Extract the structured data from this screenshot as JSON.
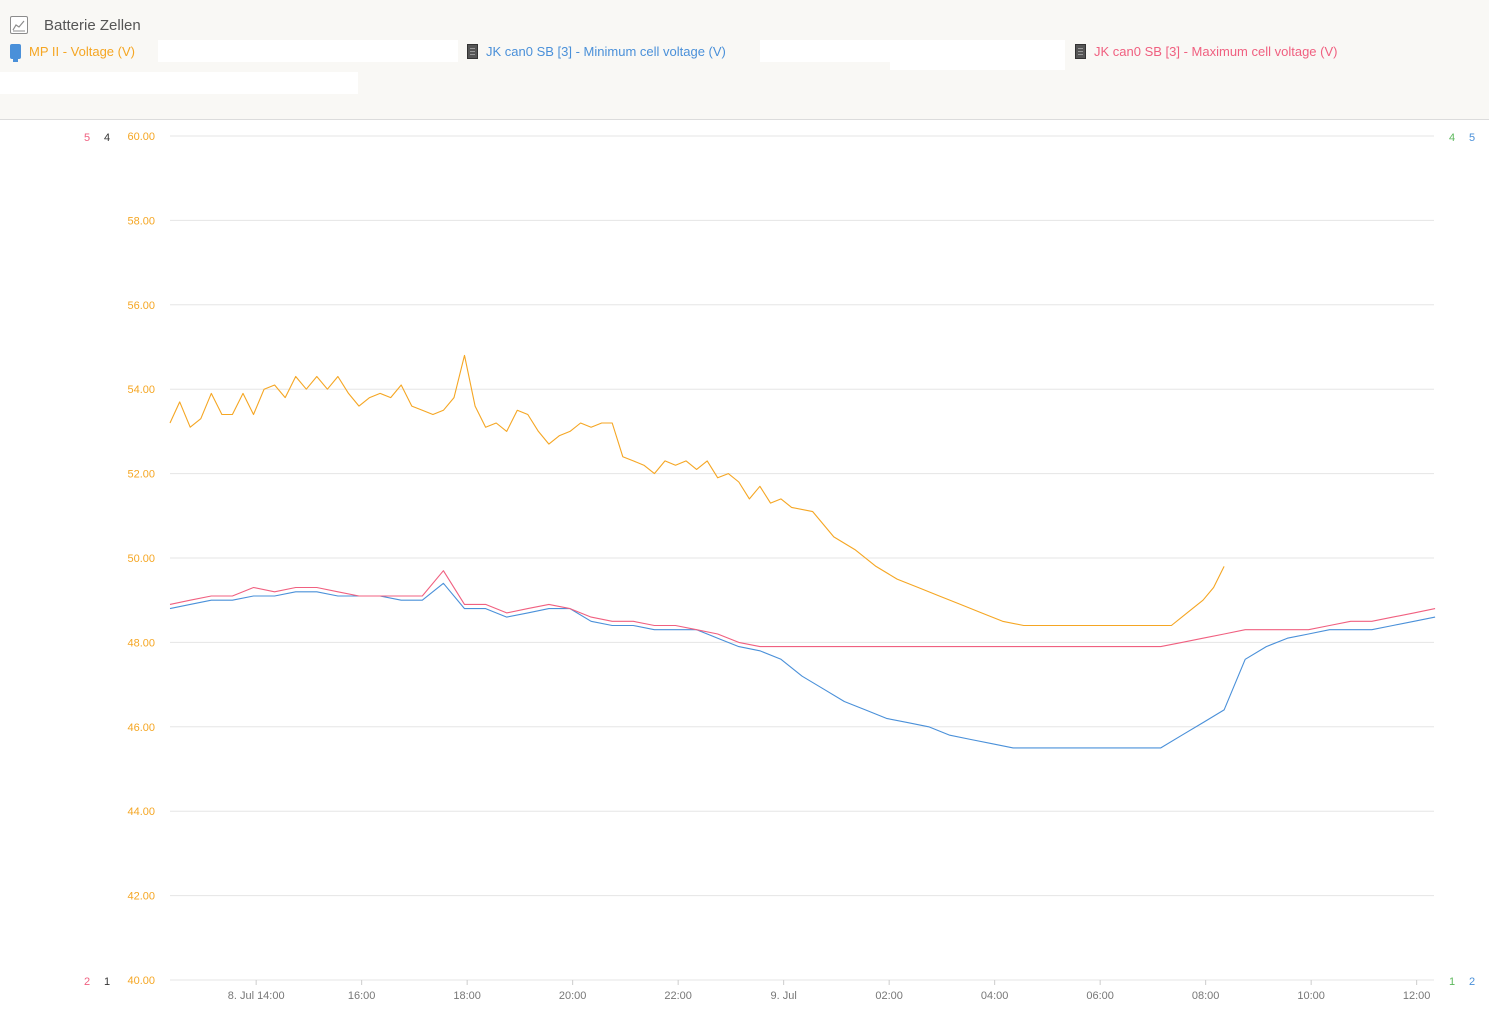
{
  "header": {
    "title": "Batterie Zellen",
    "icon": "line-chart-icon"
  },
  "legend": [
    {
      "label": "MP II  - Voltage (V)",
      "color": "#f5a623",
      "icon": "multiplus-icon"
    },
    {
      "label": "JK can0 SB [3]  - Minimum cell voltage (V)",
      "color": "#4a90d9",
      "icon": "battery-icon"
    },
    {
      "label": "JK can0 SB [3]  - Maximum cell voltage (V)",
      "color": "#f06080",
      "icon": "battery-icon"
    }
  ],
  "colors": {
    "voltage": "#f5a623",
    "min_cell": "#4a90d9",
    "max_cell": "#f06080",
    "axis_green": "#5cb85c",
    "axis_dark": "#333333",
    "grid": "#e5e5e5",
    "tick_text": "#777777"
  },
  "chart_data": {
    "type": "line",
    "title": "Batterie Zellen",
    "xlabel": "",
    "ylabel": "",
    "grid": true,
    "legend_position": "top",
    "x_range": [
      "2025-07-08 12:22",
      "2025-07-09 12:25"
    ],
    "ylim": [
      40,
      60
    ],
    "y_ticks": [
      "60.00",
      "58.00",
      "56.00",
      "54.00",
      "52.00",
      "50.00",
      "48.00",
      "46.00",
      "44.00",
      "42.00",
      "40.00"
    ],
    "x_ticks": [
      "8. Jul 14:00",
      "16:00",
      "18:00",
      "20:00",
      "22:00",
      "9. Jul",
      "02:00",
      "04:00",
      "06:00",
      "08:00",
      "10:00",
      "12:00"
    ],
    "extra_axes": {
      "left_outer": {
        "top": "5",
        "bottom": "2",
        "color": "#f06080"
      },
      "left_inner": {
        "top": "4",
        "bottom": "1",
        "color": "#333333"
      },
      "right_inner": {
        "top": "4",
        "bottom": "1",
        "color": "#5cb85c"
      },
      "right_outer": {
        "top": "5",
        "bottom": "2",
        "color": "#4a90d9"
      }
    },
    "series": [
      {
        "name": "MP II  - Voltage (V)",
        "color": "#f5a623",
        "x": [
          "07-08 12:22",
          "07-08 12:33",
          "07-08 12:45",
          "07-08 12:57",
          "07-08 13:09",
          "07-08 13:21",
          "07-08 13:33",
          "07-08 13:45",
          "07-08 13:57",
          "07-08 14:09",
          "07-08 14:21",
          "07-08 14:33",
          "07-08 14:45",
          "07-08 14:57",
          "07-08 15:09",
          "07-08 15:21",
          "07-08 15:33",
          "07-08 15:45",
          "07-08 15:57",
          "07-08 16:09",
          "07-08 16:21",
          "07-08 16:33",
          "07-08 16:45",
          "07-08 16:57",
          "07-08 17:09",
          "07-08 17:21",
          "07-08 17:33",
          "07-08 17:45",
          "07-08 17:57",
          "07-08 18:09",
          "07-08 18:21",
          "07-08 18:33",
          "07-08 18:45",
          "07-08 18:57",
          "07-08 19:09",
          "07-08 19:21",
          "07-08 19:33",
          "07-08 19:45",
          "07-08 19:57",
          "07-08 20:09",
          "07-08 20:21",
          "07-08 20:33",
          "07-08 20:45",
          "07-08 20:57",
          "07-08 21:09",
          "07-08 21:21",
          "07-08 21:33",
          "07-08 21:45",
          "07-08 21:57",
          "07-08 22:09",
          "07-08 22:21",
          "07-08 22:33",
          "07-08 22:45",
          "07-08 22:57",
          "07-08 23:09",
          "07-08 23:21",
          "07-08 23:33",
          "07-08 23:45",
          "07-08 23:57",
          "07-09 00:09",
          "07-09 00:33",
          "07-09 00:57",
          "07-09 01:21",
          "07-09 01:45",
          "07-09 02:09",
          "07-09 02:33",
          "07-09 02:57",
          "07-09 03:21",
          "07-09 03:45",
          "07-09 04:09",
          "07-09 04:33",
          "07-09 04:57",
          "07-09 05:21",
          "07-09 05:45",
          "07-09 06:09",
          "07-09 06:33",
          "07-09 06:57",
          "07-09 07:09",
          "07-09 07:21",
          "07-09 07:33",
          "07-09 07:45",
          "07-09 07:57",
          "07-09 08:09",
          "07-09 08:21"
        ],
        "values": [
          53.2,
          53.7,
          53.1,
          53.3,
          53.9,
          53.4,
          53.4,
          53.9,
          53.4,
          54.0,
          54.1,
          53.8,
          54.3,
          54.0,
          54.3,
          54.0,
          54.3,
          53.9,
          53.6,
          53.8,
          53.9,
          53.8,
          54.1,
          53.6,
          53.5,
          53.4,
          53.5,
          53.8,
          54.8,
          53.6,
          53.1,
          53.2,
          53.0,
          53.5,
          53.4,
          53.0,
          52.7,
          52.9,
          53.0,
          53.2,
          53.1,
          53.2,
          53.2,
          52.4,
          52.3,
          52.2,
          52.0,
          52.3,
          52.2,
          52.3,
          52.1,
          52.3,
          51.9,
          52.0,
          51.8,
          51.4,
          51.7,
          51.3,
          51.4,
          51.2,
          51.1,
          50.5,
          50.2,
          49.8,
          49.5,
          49.3,
          49.1,
          48.9,
          48.7,
          48.5,
          48.4,
          48.4,
          48.4,
          48.4,
          48.4,
          48.4,
          48.4,
          48.4,
          48.4,
          48.6,
          48.8,
          49.0,
          49.3,
          49.8
        ]
      },
      {
        "name": "JK can0 SB [3]  - Minimum cell voltage (V)",
        "color": "#4a90d9",
        "x": [
          "07-08 12:22",
          "07-08 12:45",
          "07-08 13:09",
          "07-08 13:33",
          "07-08 13:57",
          "07-08 14:21",
          "07-08 14:45",
          "07-08 15:09",
          "07-08 15:33",
          "07-08 15:57",
          "07-08 16:21",
          "07-08 16:45",
          "07-08 17:09",
          "07-08 17:33",
          "07-08 17:57",
          "07-08 18:21",
          "07-08 18:45",
          "07-08 19:09",
          "07-08 19:33",
          "07-08 19:57",
          "07-08 20:21",
          "07-08 20:45",
          "07-08 21:09",
          "07-08 21:33",
          "07-08 21:57",
          "07-08 22:21",
          "07-08 22:45",
          "07-08 23:09",
          "07-08 23:33",
          "07-08 23:57",
          "07-09 00:21",
          "07-09 00:45",
          "07-09 01:09",
          "07-09 01:33",
          "07-09 01:57",
          "07-09 02:21",
          "07-09 02:45",
          "07-09 03:09",
          "07-09 03:33",
          "07-09 03:57",
          "07-09 04:21",
          "07-09 04:45",
          "07-09 05:09",
          "07-09 05:33",
          "07-09 05:57",
          "07-09 06:21",
          "07-09 06:45",
          "07-09 07:09",
          "07-09 07:33",
          "07-09 07:57",
          "07-09 08:21",
          "07-09 08:45",
          "07-09 09:09",
          "07-09 09:33",
          "07-09 09:57",
          "07-09 10:21",
          "07-09 10:45",
          "07-09 11:09",
          "07-09 11:33",
          "07-09 11:57",
          "07-09 12:21"
        ],
        "values": [
          48.8,
          48.9,
          49.0,
          49.0,
          49.1,
          49.1,
          49.2,
          49.2,
          49.1,
          49.1,
          49.1,
          49.0,
          49.0,
          49.4,
          48.8,
          48.8,
          48.6,
          48.7,
          48.8,
          48.8,
          48.5,
          48.4,
          48.4,
          48.3,
          48.3,
          48.3,
          48.1,
          47.9,
          47.8,
          47.6,
          47.2,
          46.9,
          46.6,
          46.4,
          46.2,
          46.1,
          46.0,
          45.8,
          45.7,
          45.6,
          45.5,
          45.5,
          45.5,
          45.5,
          45.5,
          45.5,
          45.5,
          45.5,
          45.8,
          46.1,
          46.4,
          47.6,
          47.9,
          48.1,
          48.2,
          48.3,
          48.3,
          48.3,
          48.4,
          48.5,
          48.6
        ]
      },
      {
        "name": "JK can0 SB [3]  - Maximum cell voltage (V)",
        "color": "#f06080",
        "x": [
          "07-08 12:22",
          "07-08 12:45",
          "07-08 13:09",
          "07-08 13:33",
          "07-08 13:57",
          "07-08 14:21",
          "07-08 14:45",
          "07-08 15:09",
          "07-08 15:33",
          "07-08 15:57",
          "07-08 16:21",
          "07-08 16:45",
          "07-08 17:09",
          "07-08 17:33",
          "07-08 17:57",
          "07-08 18:21",
          "07-08 18:45",
          "07-08 19:09",
          "07-08 19:33",
          "07-08 19:57",
          "07-08 20:21",
          "07-08 20:45",
          "07-08 21:09",
          "07-08 21:33",
          "07-08 21:57",
          "07-08 22:21",
          "07-08 22:45",
          "07-08 23:09",
          "07-08 23:33",
          "07-08 23:57",
          "07-09 00:21",
          "07-09 00:45",
          "07-09 01:09",
          "07-09 01:33",
          "07-09 01:57",
          "07-09 02:21",
          "07-09 02:45",
          "07-09 03:09",
          "07-09 03:33",
          "07-09 03:57",
          "07-09 04:21",
          "07-09 04:45",
          "07-09 05:09",
          "07-09 05:33",
          "07-09 05:57",
          "07-09 06:21",
          "07-09 06:45",
          "07-09 07:09",
          "07-09 07:33",
          "07-09 07:57",
          "07-09 08:21",
          "07-09 08:45",
          "07-09 09:09",
          "07-09 09:33",
          "07-09 09:57",
          "07-09 10:21",
          "07-09 10:45",
          "07-09 11:09",
          "07-09 11:33",
          "07-09 11:57",
          "07-09 12:21"
        ],
        "values": [
          48.9,
          49.0,
          49.1,
          49.1,
          49.3,
          49.2,
          49.3,
          49.3,
          49.2,
          49.1,
          49.1,
          49.1,
          49.1,
          49.7,
          48.9,
          48.9,
          48.7,
          48.8,
          48.9,
          48.8,
          48.6,
          48.5,
          48.5,
          48.4,
          48.4,
          48.3,
          48.2,
          48.0,
          47.9,
          47.9,
          47.9,
          47.9,
          47.9,
          47.9,
          47.9,
          47.9,
          47.9,
          47.9,
          47.9,
          47.9,
          47.9,
          47.9,
          47.9,
          47.9,
          47.9,
          47.9,
          47.9,
          47.9,
          48.0,
          48.1,
          48.2,
          48.3,
          48.3,
          48.3,
          48.3,
          48.4,
          48.5,
          48.5,
          48.6,
          48.7,
          48.8
        ]
      }
    ]
  }
}
